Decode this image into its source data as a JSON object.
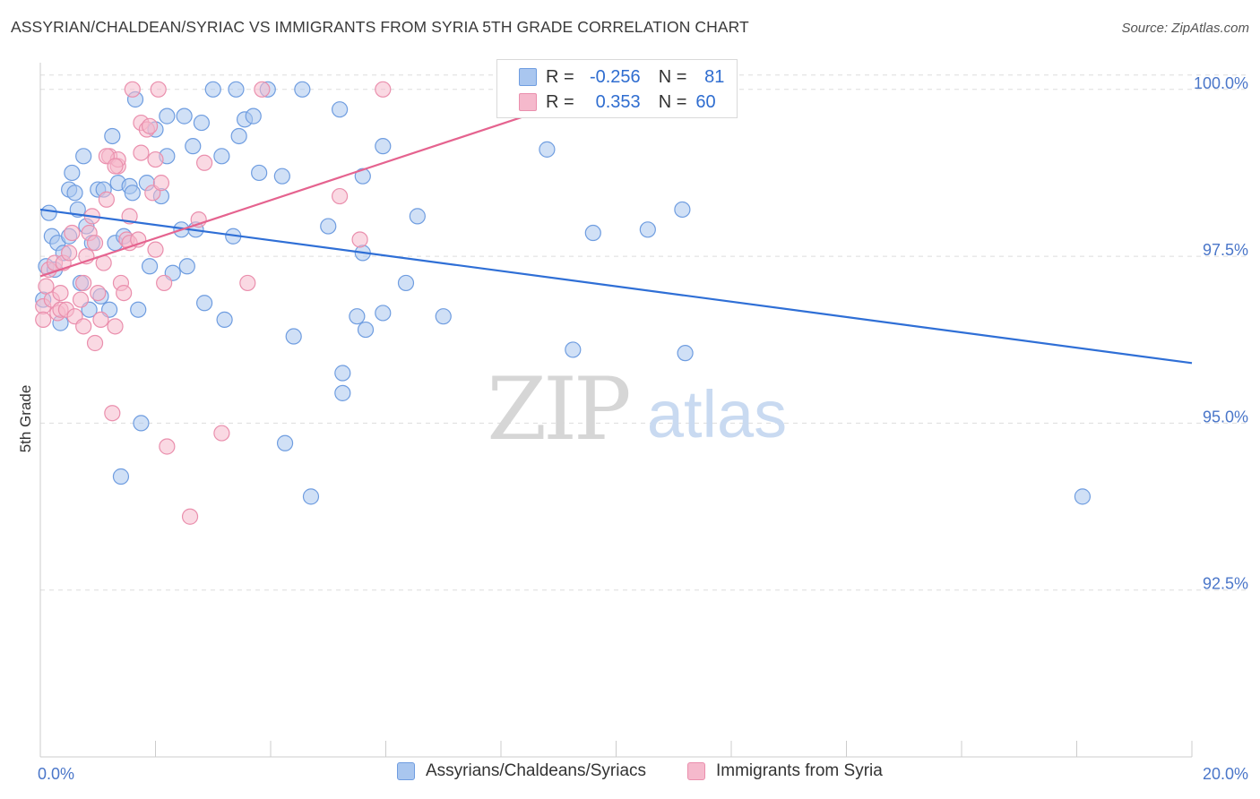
{
  "title": "ASSYRIAN/CHALDEAN/SYRIAC VS IMMIGRANTS FROM SYRIA 5TH GRADE CORRELATION CHART",
  "source": "Source: ZipAtlas.com",
  "watermark": {
    "zip": "ZIP",
    "atlas": "atlas"
  },
  "colors": {
    "blue_fill": "#a9c6ef",
    "blue_stroke": "#6f9de0",
    "blue_line": "#2f6fd6",
    "pink_fill": "#f5b9cc",
    "pink_stroke": "#ea8fad",
    "pink_line": "#e5638f",
    "grid": "#dddddd",
    "tick_text": "#4a76c9"
  },
  "legend": {
    "rows": [
      {
        "r_label": "R =",
        "r_value": "-0.256",
        "n_label": "N =",
        "n_value": "81"
      },
      {
        "r_label": "R =",
        "r_value": "0.353",
        "n_label": "N =",
        "n_value": "60"
      }
    ]
  },
  "bottom_legend": [
    "Assyrians/Chaldeans/Syriacs",
    "Immigrants from Syria"
  ],
  "chart_data": {
    "type": "scatter",
    "title": "ASSYRIAN/CHALDEAN/SYRIAC VS IMMIGRANTS FROM SYRIA 5TH GRADE CORRELATION CHART",
    "xlabel": "",
    "ylabel": "5th Grade",
    "xlim": [
      0,
      20
    ],
    "ylim": [
      90.0,
      100.4
    ],
    "x_tick_labels": [
      "0.0%",
      "20.0%"
    ],
    "y_ticks": [
      92.5,
      95.0,
      97.5,
      100.0
    ],
    "y_tick_labels": [
      "92.5%",
      "95.0%",
      "97.5%",
      "100.0%"
    ],
    "grid": true,
    "legend_position": "top-center",
    "series": [
      {
        "name": "Assyrians/Chaldeans/Syriacs",
        "color": "#a9c6ef",
        "points": [
          [
            0.05,
            96.85
          ],
          [
            0.1,
            97.35
          ],
          [
            0.15,
            98.15
          ],
          [
            0.2,
            97.8
          ],
          [
            0.25,
            97.3
          ],
          [
            0.3,
            97.7
          ],
          [
            0.35,
            96.5
          ],
          [
            0.4,
            97.55
          ],
          [
            0.5,
            97.8
          ],
          [
            0.5,
            98.5
          ],
          [
            0.55,
            98.75
          ],
          [
            0.6,
            98.45
          ],
          [
            0.65,
            98.2
          ],
          [
            0.7,
            97.1
          ],
          [
            0.75,
            99.0
          ],
          [
            0.8,
            97.95
          ],
          [
            0.85,
            96.7
          ],
          [
            0.9,
            97.7
          ],
          [
            1.0,
            98.5
          ],
          [
            1.05,
            96.9
          ],
          [
            1.1,
            98.5
          ],
          [
            1.2,
            96.7
          ],
          [
            1.25,
            99.3
          ],
          [
            1.3,
            97.7
          ],
          [
            1.35,
            98.6
          ],
          [
            1.45,
            97.8
          ],
          [
            1.55,
            98.55
          ],
          [
            1.6,
            98.45
          ],
          [
            1.65,
            99.85
          ],
          [
            1.7,
            96.7
          ],
          [
            1.75,
            95.0
          ],
          [
            1.85,
            98.6
          ],
          [
            1.9,
            97.35
          ],
          [
            2.0,
            99.4
          ],
          [
            2.1,
            98.4
          ],
          [
            2.2,
            99.6
          ],
          [
            2.2,
            99.0
          ],
          [
            2.3,
            97.25
          ],
          [
            2.45,
            97.9
          ],
          [
            2.5,
            99.6
          ],
          [
            2.55,
            97.35
          ],
          [
            2.65,
            99.15
          ],
          [
            2.7,
            97.9
          ],
          [
            2.8,
            99.5
          ],
          [
            2.85,
            96.8
          ],
          [
            3.0,
            100.0
          ],
          [
            3.15,
            99.0
          ],
          [
            3.2,
            96.55
          ],
          [
            3.35,
            97.8
          ],
          [
            3.4,
            100.0
          ],
          [
            3.45,
            99.3
          ],
          [
            3.55,
            99.55
          ],
          [
            3.7,
            99.6
          ],
          [
            3.8,
            98.75
          ],
          [
            3.95,
            100.0
          ],
          [
            4.2,
            98.7
          ],
          [
            4.25,
            94.7
          ],
          [
            4.4,
            96.3
          ],
          [
            4.55,
            100.0
          ],
          [
            4.7,
            93.9
          ],
          [
            5.0,
            97.95
          ],
          [
            5.2,
            99.7
          ],
          [
            5.25,
            95.75
          ],
          [
            5.25,
            95.45
          ],
          [
            5.5,
            96.6
          ],
          [
            5.6,
            97.55
          ],
          [
            5.6,
            98.7
          ],
          [
            5.65,
            96.4
          ],
          [
            5.95,
            99.15
          ],
          [
            5.95,
            96.65
          ],
          [
            6.35,
            97.1
          ],
          [
            6.55,
            98.1
          ],
          [
            7.0,
            96.6
          ],
          [
            8.8,
            99.1
          ],
          [
            9.25,
            96.1
          ],
          [
            9.6,
            97.85
          ],
          [
            10.55,
            97.9
          ],
          [
            11.15,
            98.2
          ],
          [
            11.2,
            96.05
          ],
          [
            18.1,
            93.9
          ],
          [
            1.4,
            94.2
          ]
        ],
        "trendline": {
          "x": [
            0,
            20
          ],
          "y": [
            98.2,
            95.9
          ]
        }
      },
      {
        "name": "Immigrants from Syria",
        "color": "#f5b9cc",
        "points": [
          [
            0.05,
            96.75
          ],
          [
            0.05,
            96.55
          ],
          [
            0.1,
            97.05
          ],
          [
            0.15,
            97.3
          ],
          [
            0.2,
            96.85
          ],
          [
            0.25,
            97.4
          ],
          [
            0.3,
            96.65
          ],
          [
            0.35,
            96.95
          ],
          [
            0.35,
            96.7
          ],
          [
            0.4,
            97.4
          ],
          [
            0.45,
            96.7
          ],
          [
            0.5,
            97.55
          ],
          [
            0.55,
            97.85
          ],
          [
            0.6,
            96.6
          ],
          [
            0.7,
            96.85
          ],
          [
            0.75,
            97.1
          ],
          [
            0.75,
            96.45
          ],
          [
            0.8,
            97.5
          ],
          [
            0.85,
            97.85
          ],
          [
            0.9,
            98.1
          ],
          [
            0.95,
            97.7
          ],
          [
            0.95,
            96.2
          ],
          [
            1.0,
            96.95
          ],
          [
            1.05,
            96.55
          ],
          [
            1.1,
            97.4
          ],
          [
            1.15,
            98.35
          ],
          [
            1.2,
            99.0
          ],
          [
            1.25,
            95.15
          ],
          [
            1.3,
            96.45
          ],
          [
            1.35,
            98.85
          ],
          [
            1.35,
            98.95
          ],
          [
            1.4,
            97.1
          ],
          [
            1.45,
            96.95
          ],
          [
            1.5,
            97.75
          ],
          [
            1.55,
            97.7
          ],
          [
            1.55,
            98.1
          ],
          [
            1.6,
            100.0
          ],
          [
            1.7,
            97.75
          ],
          [
            1.75,
            99.05
          ],
          [
            1.75,
            99.5
          ],
          [
            1.85,
            99.4
          ],
          [
            1.9,
            99.45
          ],
          [
            1.95,
            98.45
          ],
          [
            2.0,
            98.95
          ],
          [
            2.0,
            97.6
          ],
          [
            2.05,
            100.0
          ],
          [
            2.1,
            98.6
          ],
          [
            2.15,
            97.1
          ],
          [
            2.2,
            94.65
          ],
          [
            2.6,
            93.6
          ],
          [
            2.75,
            98.05
          ],
          [
            2.85,
            98.9
          ],
          [
            3.15,
            94.85
          ],
          [
            3.6,
            97.1
          ],
          [
            3.85,
            100.0
          ],
          [
            5.2,
            98.4
          ],
          [
            5.55,
            97.75
          ],
          [
            5.95,
            100.0
          ],
          [
            1.15,
            99.0
          ],
          [
            1.3,
            98.85
          ]
        ],
        "trendline": {
          "x": [
            0,
            10
          ],
          "y": [
            97.2,
            100.05
          ]
        }
      }
    ]
  }
}
